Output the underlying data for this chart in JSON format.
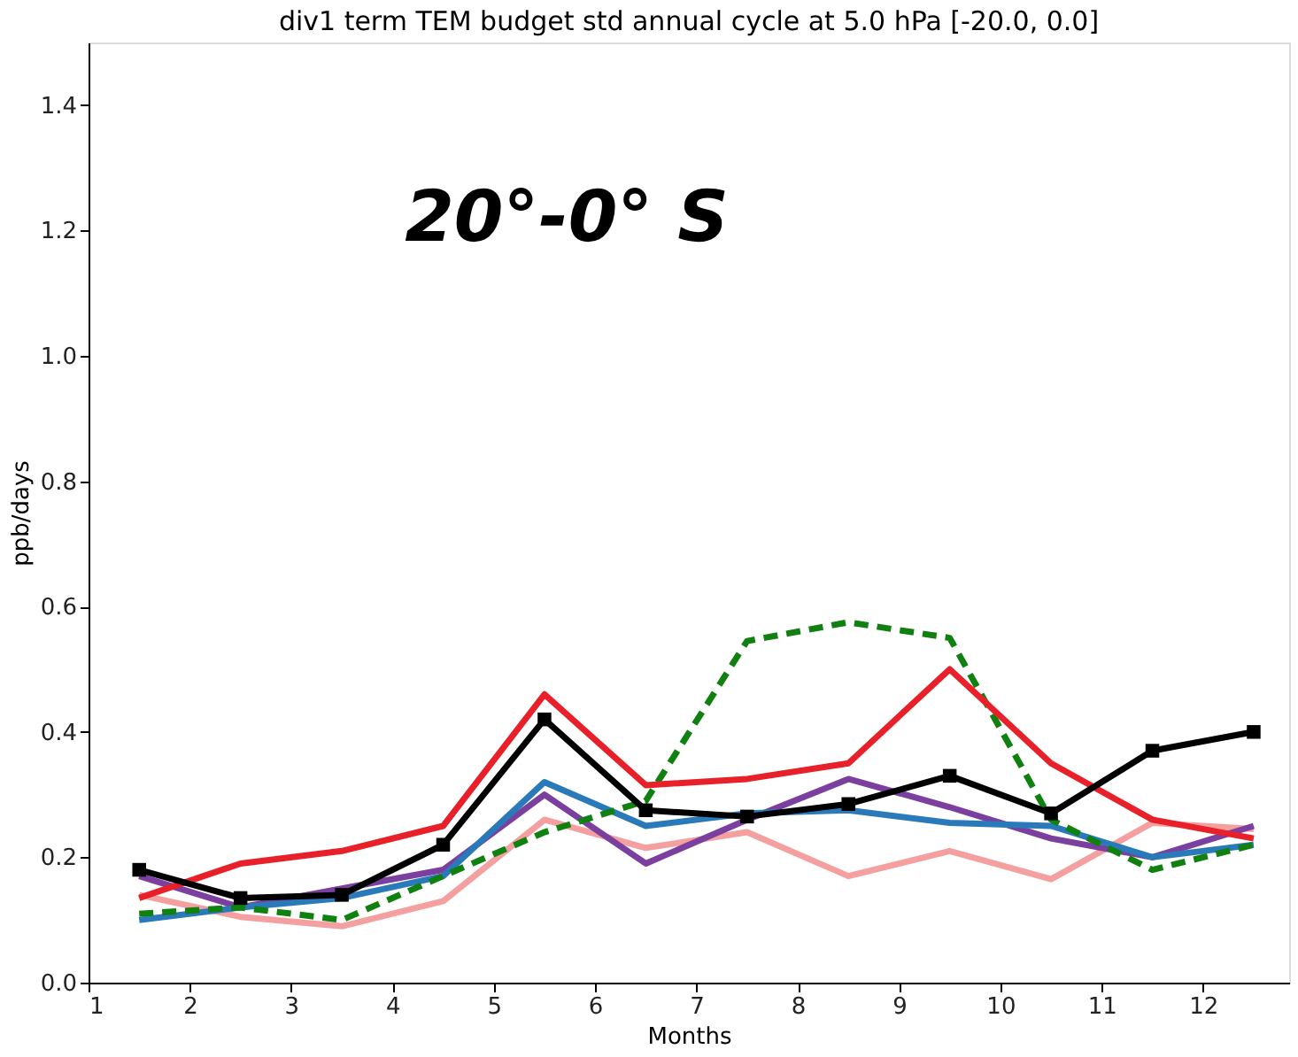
{
  "chart_data": {
    "type": "line",
    "title": "div1 term TEM budget std annual cycle at 5.0 hPa [-20.0, 0.0]",
    "xlabel": "Months",
    "ylabel": "ppb/days",
    "annotations": [
      "20°-0° S"
    ],
    "x": [
      1.5,
      2.5,
      3.5,
      4.5,
      5.5,
      6.5,
      7.5,
      8.5,
      9.5,
      10.5,
      11.5,
      12.5
    ],
    "xlim": [
      1,
      12.85
    ],
    "xticks": [
      1,
      2,
      3,
      4,
      5,
      6,
      7,
      8,
      9,
      10,
      11,
      12
    ],
    "ylim": [
      0,
      1.5
    ],
    "yticks": [
      {
        "value": 0,
        "label": "0.0"
      },
      0.2,
      0.4,
      0.6,
      0.8,
      {
        "value": 1,
        "label": "1.0"
      },
      1.2,
      1.4
    ],
    "grid": false,
    "series": [
      {
        "color": "#f4a0a0",
        "values": [
          0.14,
          0.105,
          0.09,
          0.13,
          0.26,
          0.215,
          0.24,
          0.17,
          0.21,
          0.165,
          0.255,
          0.245
        ]
      },
      {
        "color": "#7b3fa0",
        "values": [
          0.17,
          0.12,
          0.15,
          0.18,
          0.3,
          0.19,
          0.26,
          0.325,
          0.28,
          0.23,
          0.2,
          0.25
        ]
      },
      {
        "color": "#2a7ab9",
        "values": [
          0.1,
          0.12,
          0.135,
          0.17,
          0.32,
          0.25,
          0.27,
          0.275,
          0.255,
          0.25,
          0.2,
          0.22
        ]
      },
      {
        "color": "#108010",
        "line_style": "dashed",
        "values": [
          0.11,
          0.12,
          0.1,
          0.17,
          0.24,
          0.29,
          0.545,
          0.575,
          0.55,
          0.26,
          0.18,
          0.22
        ]
      },
      {
        "color": "#e8202a",
        "values": [
          0.135,
          0.19,
          0.21,
          0.25,
          0.46,
          0.315,
          0.325,
          0.35,
          0.5,
          0.35,
          0.26,
          0.23
        ]
      },
      {
        "color": "#000000",
        "marker": "square",
        "values": [
          0.18,
          0.135,
          0.14,
          0.22,
          0.42,
          0.275,
          0.265,
          0.285,
          0.33,
          0.27,
          0.37,
          0.4
        ]
      }
    ]
  }
}
